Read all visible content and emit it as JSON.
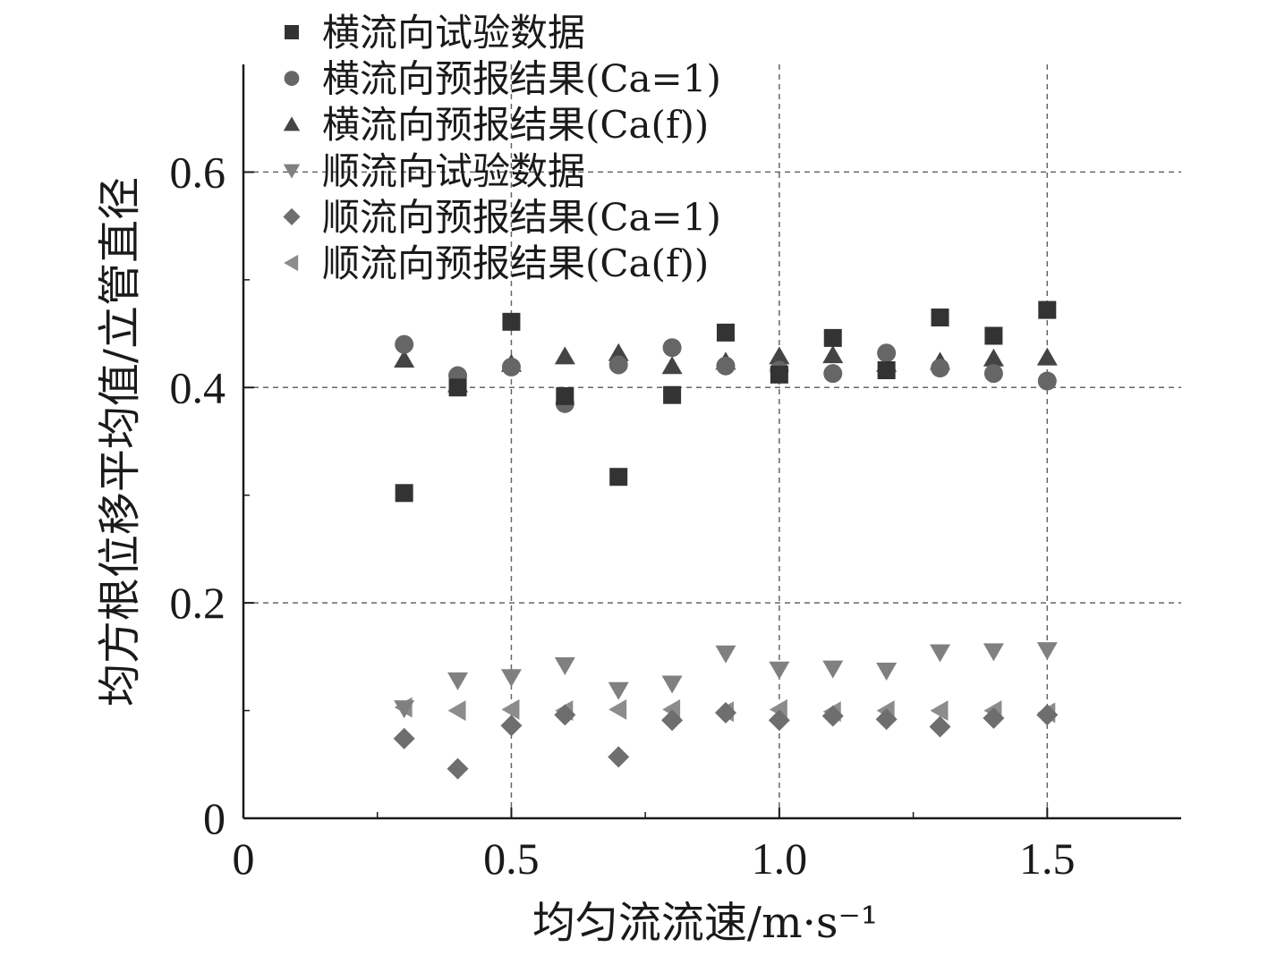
{
  "chart_data": {
    "type": "scatter",
    "xlabel": "均匀流流速/m·s⁻¹",
    "ylabel": "均方根位移平均值/立管直径",
    "xlim": [
      0,
      1.75
    ],
    "ylim": [
      0,
      0.7
    ],
    "xticks": [
      0,
      0.5,
      1.0,
      1.5
    ],
    "xtick_labels": [
      "0",
      "0.5",
      "1.0",
      "1.5"
    ],
    "yticks": [
      0,
      0.2,
      0.4,
      0.6
    ],
    "ytick_labels": [
      "0",
      "0.2",
      "0.4",
      "0.6"
    ],
    "grid": true,
    "legend_position": "top-left",
    "series": [
      {
        "name": "横流向试验数据",
        "marker": "square",
        "color": "#333333",
        "x": [
          0.3,
          0.4,
          0.5,
          0.6,
          0.7,
          0.8,
          0.9,
          1.0,
          1.1,
          1.2,
          1.3,
          1.4,
          1.5
        ],
        "y": [
          0.302,
          0.4,
          0.461,
          0.392,
          0.317,
          0.393,
          0.451,
          0.412,
          0.446,
          0.416,
          0.465,
          0.448,
          0.472
        ]
      },
      {
        "name": "横流向预报结果(Ca=1)",
        "marker": "circle",
        "color": "#666666",
        "x": [
          0.3,
          0.4,
          0.5,
          0.6,
          0.7,
          0.8,
          0.9,
          1.0,
          1.1,
          1.2,
          1.3,
          1.4,
          1.5
        ],
        "y": [
          0.44,
          0.411,
          0.419,
          0.385,
          0.421,
          0.437,
          0.42,
          0.416,
          0.413,
          0.432,
          0.418,
          0.413,
          0.406
        ]
      },
      {
        "name": "横流向预报结果(Ca(f))",
        "marker": "triangle-up",
        "color": "#444444",
        "x": [
          0.3,
          0.4,
          0.5,
          0.6,
          0.7,
          0.8,
          0.9,
          1.0,
          1.1,
          1.2,
          1.3,
          1.4,
          1.5
        ],
        "y": [
          0.426,
          0.403,
          0.422,
          0.429,
          0.432,
          0.42,
          0.424,
          0.429,
          0.43,
          0.422,
          0.424,
          0.427,
          0.428
        ]
      },
      {
        "name": "顺流向试验数据",
        "marker": "triangle-down",
        "color": "#808080",
        "x": [
          0.3,
          0.4,
          0.5,
          0.6,
          0.7,
          0.8,
          0.9,
          1.0,
          1.1,
          1.2,
          1.3,
          1.4,
          1.5
        ],
        "y": [
          0.102,
          0.128,
          0.131,
          0.142,
          0.119,
          0.125,
          0.153,
          0.138,
          0.139,
          0.137,
          0.154,
          0.155,
          0.156
        ]
      },
      {
        "name": "顺流向预报结果(Ca=1)",
        "marker": "diamond",
        "color": "#6e6e6e",
        "x": [
          0.3,
          0.4,
          0.5,
          0.6,
          0.7,
          0.8,
          0.9,
          1.0,
          1.1,
          1.2,
          1.3,
          1.4,
          1.5
        ],
        "y": [
          0.074,
          0.046,
          0.086,
          0.096,
          0.057,
          0.091,
          0.098,
          0.091,
          0.095,
          0.092,
          0.085,
          0.093,
          0.096
        ]
      },
      {
        "name": "顺流向预报结果(Ca(f))",
        "marker": "triangle-left",
        "color": "#8c8c8c",
        "x": [
          0.3,
          0.4,
          0.5,
          0.6,
          0.7,
          0.8,
          0.9,
          1.0,
          1.1,
          1.2,
          1.3,
          1.4,
          1.5
        ],
        "y": [
          0.103,
          0.1,
          0.101,
          0.1,
          0.101,
          0.101,
          0.099,
          0.101,
          0.099,
          0.1,
          0.1,
          0.1,
          0.098
        ]
      }
    ]
  }
}
